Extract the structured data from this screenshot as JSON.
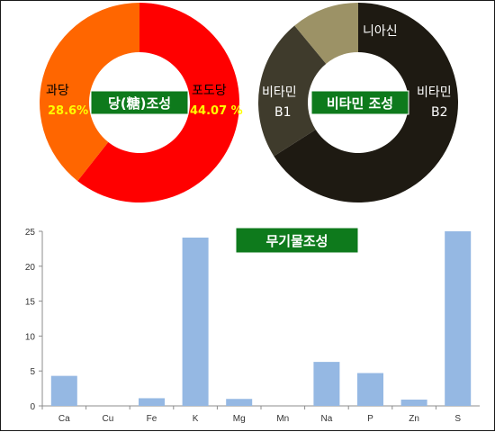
{
  "chart_data": [
    {
      "type": "pie",
      "title": "당(糖)조성",
      "slices": [
        {
          "name": "포도당",
          "value": 44.07,
          "label": "44.07 %",
          "color": "#ff0000"
        },
        {
          "name": "과당",
          "value": 28.6,
          "label": "28.6%",
          "color": "#ff6600"
        }
      ]
    },
    {
      "type": "pie",
      "title": "비타민 조성",
      "slices": [
        {
          "name": "비타민 B1",
          "name_lines": [
            "비타민",
            "B1"
          ],
          "value": 66,
          "color": "#1e1a12"
        },
        {
          "name": "비타민 B2",
          "name_lines": [
            "비타민",
            "B2"
          ],
          "value": 23,
          "color": "#3f3b2c"
        },
        {
          "name": "니아신",
          "name_lines": [
            "니아신"
          ],
          "value": 11,
          "color": "#9c9266"
        }
      ]
    },
    {
      "type": "bar",
      "title": "무기물조성",
      "categories": [
        "Ca",
        "Cu",
        "Fe",
        "K",
        "Mg",
        "Mn",
        "Na",
        "P",
        "Zn",
        "S"
      ],
      "values": [
        4.3,
        0,
        1.1,
        24.1,
        1.0,
        0,
        6.3,
        4.7,
        0.9,
        25.0
      ],
      "ylim": [
        0,
        25
      ],
      "yticks": [
        0,
        5,
        10,
        15,
        20,
        25
      ],
      "color": "#95b8e3"
    }
  ]
}
